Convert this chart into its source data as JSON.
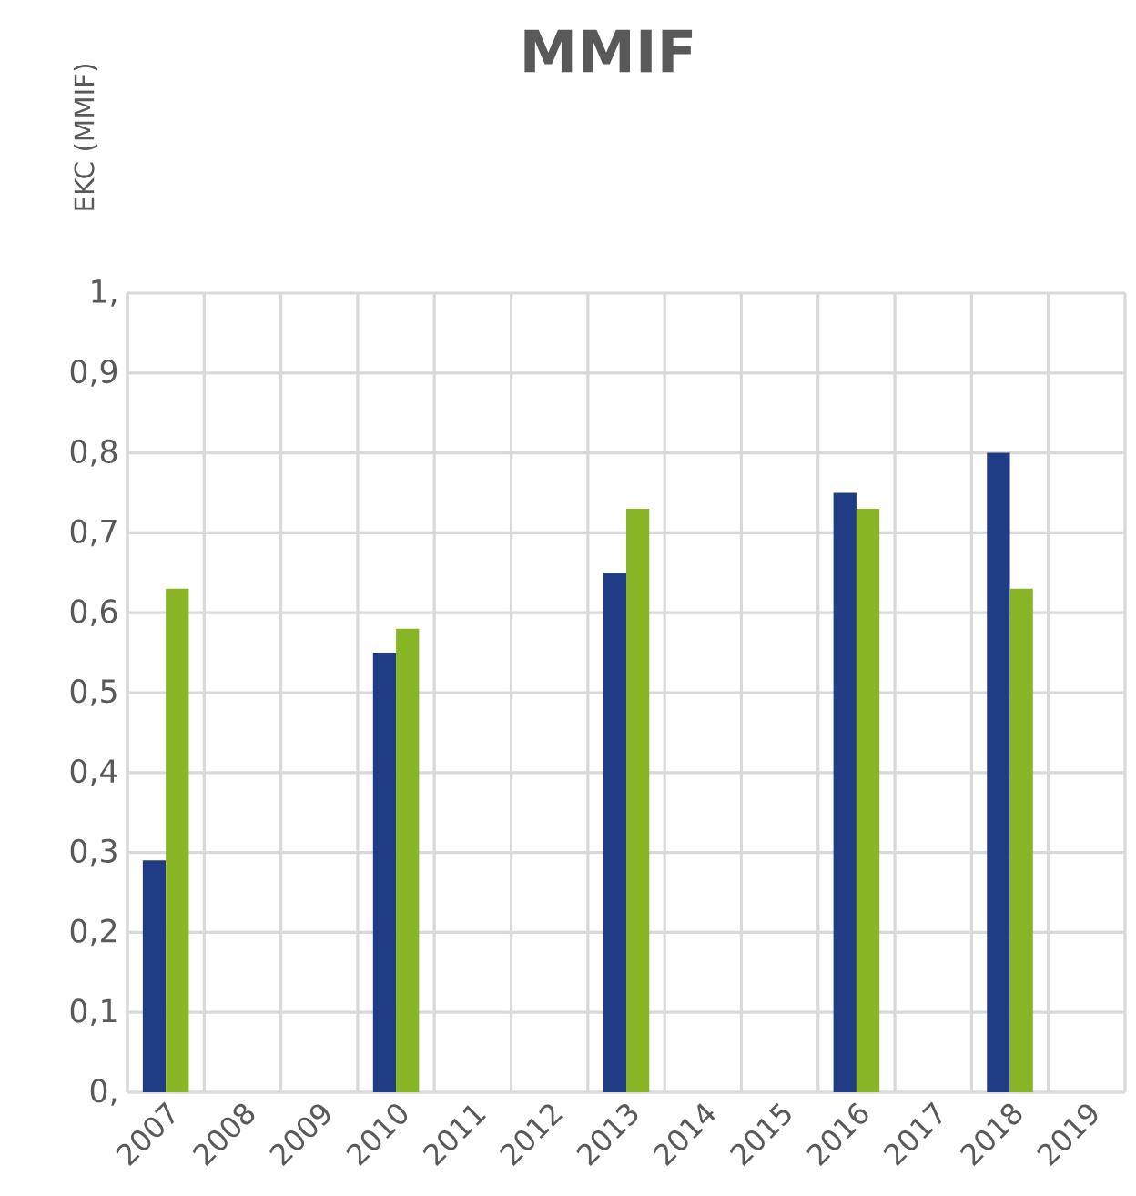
{
  "chart_data": {
    "type": "bar",
    "title": "MMIF",
    "ylabel": "EKC (MMIF)",
    "categories": [
      "2007",
      "2008",
      "2009",
      "2010",
      "2011",
      "2012",
      "2013",
      "2014",
      "2015",
      "2016",
      "2017",
      "2018",
      "2019"
    ],
    "series": [
      {
        "color": "#1f3c84",
        "values": [
          0.29,
          null,
          null,
          0.55,
          null,
          null,
          0.65,
          null,
          null,
          0.75,
          null,
          0.8,
          null
        ]
      },
      {
        "color": "#89b626",
        "values": [
          0.63,
          null,
          null,
          0.58,
          null,
          null,
          0.73,
          null,
          null,
          0.73,
          null,
          0.63,
          null
        ]
      }
    ],
    "ylim": [
      0,
      1
    ],
    "yticks": [
      {
        "value": 0,
        "label": "0,"
      },
      {
        "value": 0.1,
        "label": "0,1"
      },
      {
        "value": 0.2,
        "label": "0,2"
      },
      {
        "value": 0.3,
        "label": "0,3"
      },
      {
        "value": 0.4,
        "label": "0,4"
      },
      {
        "value": 0.5,
        "label": "0,5"
      },
      {
        "value": 0.6,
        "label": "0,6"
      },
      {
        "value": 0.7,
        "label": "0,7"
      },
      {
        "value": 0.8,
        "label": "0,8"
      },
      {
        "value": 0.9,
        "label": "0,9"
      },
      {
        "value": 1,
        "label": "1,"
      }
    ],
    "grid": true
  }
}
